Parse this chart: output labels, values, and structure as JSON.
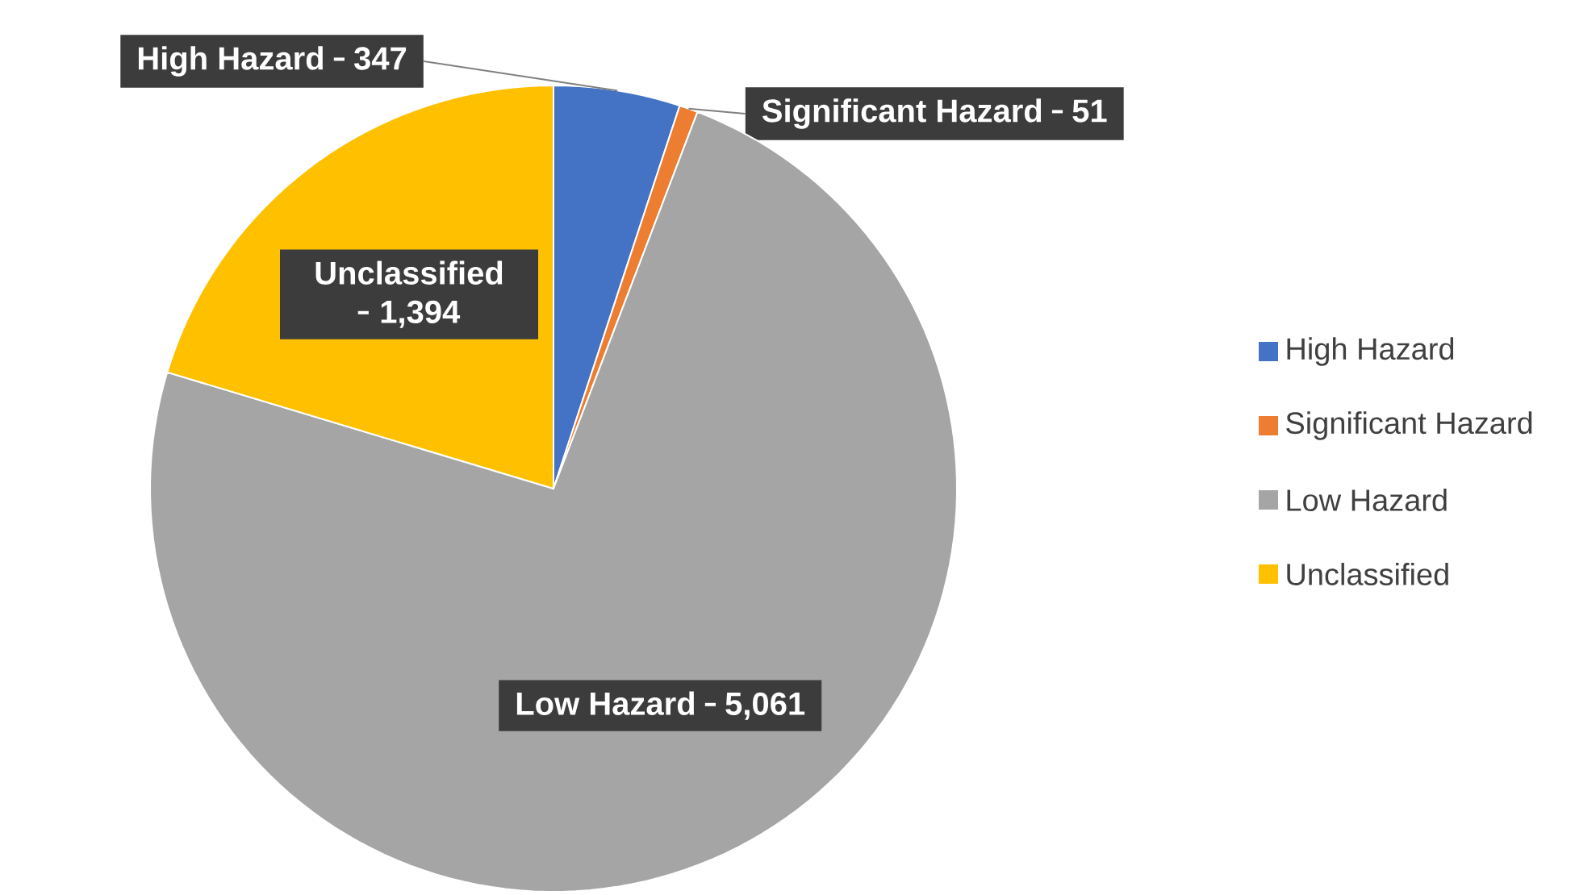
{
  "chart_data": {
    "type": "pie",
    "categories": [
      "High Hazard",
      "Significant Hazard",
      "Low Hazard",
      "Unclassified"
    ],
    "values": [
      347,
      51,
      5061,
      1394
    ],
    "colors": [
      "#4472c4",
      "#ed7d31",
      "#a5a5a5",
      "#ffc000"
    ],
    "value_labels": [
      "347",
      "51",
      "5,061",
      "1,394"
    ],
    "legend": "right"
  }
}
